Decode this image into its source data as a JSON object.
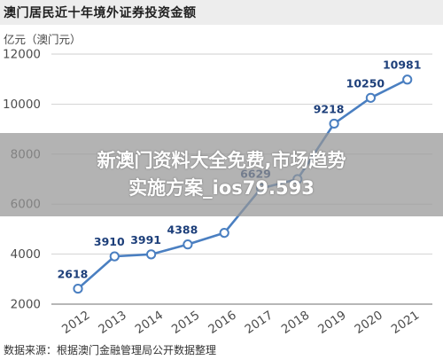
{
  "header": {
    "title": "澳门居民近十年境外证券投资金额",
    "unit_label": "亿元（澳门元）"
  },
  "footer": {
    "source": "数据来源：根据澳门金融管理局公开数据整理"
  },
  "overlay": {
    "line1": "新澳门资料大全免费,市场趋势",
    "line2": "实施方案_ios79.593"
  },
  "chart_data": {
    "type": "line",
    "title": "澳门居民近十年境外证券投资金额",
    "ylabel": "亿元（澳门元）",
    "xlabel": "",
    "x": [
      "2012",
      "2013",
      "2014",
      "2015",
      "2016",
      "2017",
      "2018",
      "2019",
      "2020",
      "2021"
    ],
    "series": [
      {
        "values": [
          2618,
          3910,
          3991,
          4388,
          4850,
          6629,
          7000,
          9218,
          10250,
          10981
        ]
      }
    ],
    "data_labels": [
      "2618",
      "3910",
      "3991",
      "4388",
      "",
      "6629",
      "",
      "9218",
      "10250",
      "10981"
    ],
    "y_ticks": [
      "2000",
      "4000",
      "6000",
      "8000",
      "10000",
      "12000"
    ],
    "ylim": [
      2000,
      12000
    ],
    "grid": true,
    "legend": "none",
    "colors": {
      "line": "#4a7fc1",
      "marker_fill": "#ffffff",
      "label": "#1d3f7a"
    }
  }
}
